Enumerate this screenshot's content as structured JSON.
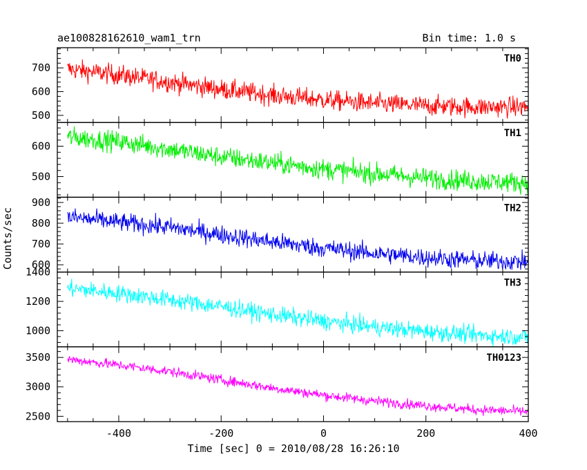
{
  "header": {
    "title": "ae100828162610_wam1_trn",
    "bin_time": "Bin time: 1.0 s"
  },
  "chart_data": {
    "type": "line",
    "xlabel": "Time [sec] 0 = 2010/08/28 16:26:10",
    "ylabel": "Counts/sec",
    "xlim": [
      -520,
      400
    ],
    "x_ticks": [
      -400,
      -200,
      0,
      200,
      400
    ],
    "x_range": [
      -500,
      400
    ],
    "bin_seconds": 1.0,
    "panels": [
      {
        "name": "TH0",
        "color": "#ff0000",
        "ylim": [
          470,
          785
        ],
        "y_ticks": [
          500,
          600,
          700
        ],
        "trend": [
          [
            -500,
            695
          ],
          [
            -400,
            670
          ],
          [
            -300,
            640
          ],
          [
            -200,
            610
          ],
          [
            -100,
            585
          ],
          [
            0,
            565
          ],
          [
            100,
            550
          ],
          [
            200,
            540
          ],
          [
            300,
            535
          ],
          [
            400,
            535
          ]
        ],
        "noise": 30
      },
      {
        "name": "TH1",
        "color": "#00ee00",
        "ylim": [
          432,
          678
        ],
        "y_ticks": [
          500,
          600
        ],
        "trend": [
          [
            -500,
            630
          ],
          [
            -400,
            615
          ],
          [
            -300,
            590
          ],
          [
            -200,
            565
          ],
          [
            -100,
            545
          ],
          [
            0,
            525
          ],
          [
            100,
            510
          ],
          [
            200,
            495
          ],
          [
            300,
            485
          ],
          [
            400,
            480
          ]
        ],
        "noise": 24
      },
      {
        "name": "TH2",
        "color": "#0000ee",
        "ylim": [
          565,
          925
        ],
        "y_ticks": [
          600,
          700,
          800,
          900
        ],
        "trend": [
          [
            -500,
            830
          ],
          [
            -400,
            805
          ],
          [
            -300,
            780
          ],
          [
            -200,
            745
          ],
          [
            -100,
            710
          ],
          [
            0,
            680
          ],
          [
            100,
            655
          ],
          [
            200,
            635
          ],
          [
            300,
            620
          ],
          [
            400,
            615
          ]
        ],
        "noise": 32
      },
      {
        "name": "TH3",
        "color": "#00ffff",
        "ylim": [
          890,
          1400
        ],
        "y_ticks": [
          1000,
          1200,
          1400
        ],
        "trend": [
          [
            -500,
            1290
          ],
          [
            -400,
            1255
          ],
          [
            -300,
            1210
          ],
          [
            -200,
            1165
          ],
          [
            -100,
            1110
          ],
          [
            0,
            1065
          ],
          [
            100,
            1025
          ],
          [
            200,
            995
          ],
          [
            300,
            970
          ],
          [
            400,
            955
          ]
        ],
        "noise": 42
      },
      {
        "name": "TH0123",
        "color": "#ff00ff",
        "ylim": [
          2410,
          3680
        ],
        "y_ticks": [
          2500,
          3000,
          3500
        ],
        "trend": [
          [
            -500,
            3470
          ],
          [
            -400,
            3370
          ],
          [
            -300,
            3260
          ],
          [
            -200,
            3120
          ],
          [
            -100,
            2980
          ],
          [
            0,
            2860
          ],
          [
            100,
            2760
          ],
          [
            200,
            2680
          ],
          [
            300,
            2610
          ],
          [
            400,
            2580
          ]
        ],
        "noise": 60
      }
    ]
  }
}
